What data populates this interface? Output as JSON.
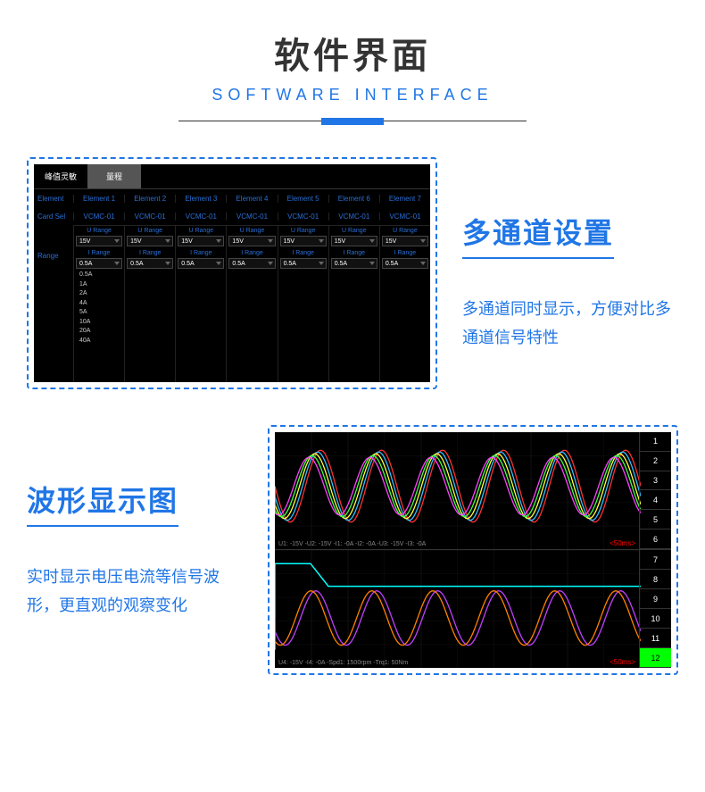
{
  "header": {
    "title_cn": "软件界面",
    "title_en": "SOFTWARE INTERFACE"
  },
  "section1": {
    "heading": "多通道设置",
    "desc": "多通道同时显示，方便对比多通道信号特性",
    "table": {
      "tabs": [
        "峰值灵敏",
        "量程"
      ],
      "active_tab": 1,
      "row_element_label": "Element",
      "elements": [
        "Element 1",
        "Element 2",
        "Element 3",
        "Element 4",
        "Element 5",
        "Element 6",
        "Element 7"
      ],
      "row_card_label": "Card Sel",
      "cards": [
        "VCMC-01",
        "VCMC-01",
        "VCMC-01",
        "VCMC-01",
        "VCMC-01",
        "VCMC-01",
        "VCMC-01"
      ],
      "range_label": "Range",
      "u_range_hdr": "U Range",
      "u_range_val": "15V",
      "i_range_hdr": "I Range",
      "i_range_val": "0.5A",
      "i_options": [
        "0.5A",
        "1A",
        "2A",
        "4A",
        "5A",
        "10A",
        "20A",
        "40A"
      ]
    },
    "colors": {
      "border": "#2076e6",
      "bg": "#000000",
      "accent": "#2a6fd6"
    }
  },
  "section2": {
    "heading": "波形显示图",
    "desc": "实时显示电压电流等信号波形，更直观的观察变化",
    "scope": {
      "channels_top": [
        "1",
        "2",
        "3",
        "4",
        "5",
        "6"
      ],
      "channels_bot": [
        "7",
        "8",
        "9",
        "10",
        "11",
        "12"
      ],
      "lit_channel": "12",
      "time_scale": "<50ms>",
      "status_top": "U1: -15V  -U2: -15V  -I1: -0A  -I2: -0A  -U3: -15V  -I3: -0A",
      "status_bot": "U4: -15V  -I4: -0A  -Spd1: 1500rpm  -Trq1: 50Nm",
      "wave_colors_top": [
        "#ff3030",
        "#30c0ff",
        "#ffff40",
        "#40ff40",
        "#ff40ff"
      ],
      "wave_colors_bot": [
        "#00ffff",
        "#c040ff",
        "#ff8000"
      ],
      "bg": "#000000"
    }
  }
}
